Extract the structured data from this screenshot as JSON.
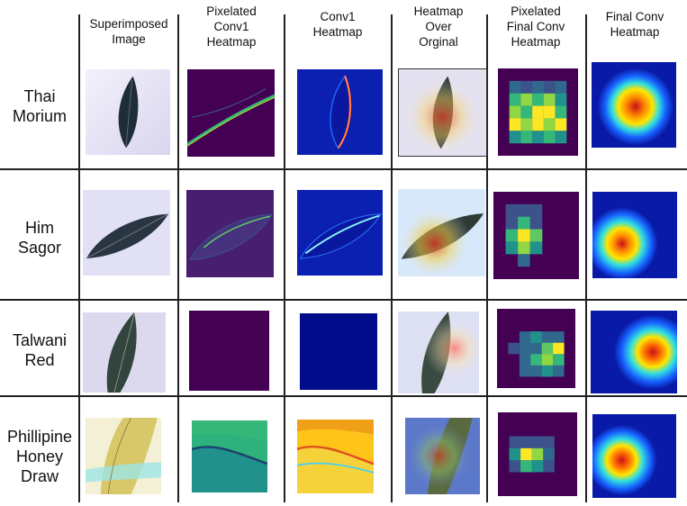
{
  "columns": [
    "Superimposed\nImage",
    "Pixelated\nConv1\nHeatmap",
    "Conv1\nHeatmap",
    "Heatmap\nOver\nOrginal",
    "Pixelated\nFinal Conv\nHeatmap",
    "Final Conv\nHeatmap"
  ],
  "rows": [
    "Thai\nMorium",
    "Him\nSagor",
    "Talwani\nRed",
    "Phillipine\nHoney\nDraw"
  ],
  "colors": {
    "viridis_dark": "#440154",
    "conv_blue": "#0b1fb0",
    "jet_red": "#c8101a",
    "paper_bg": "#e9e6f6"
  }
}
